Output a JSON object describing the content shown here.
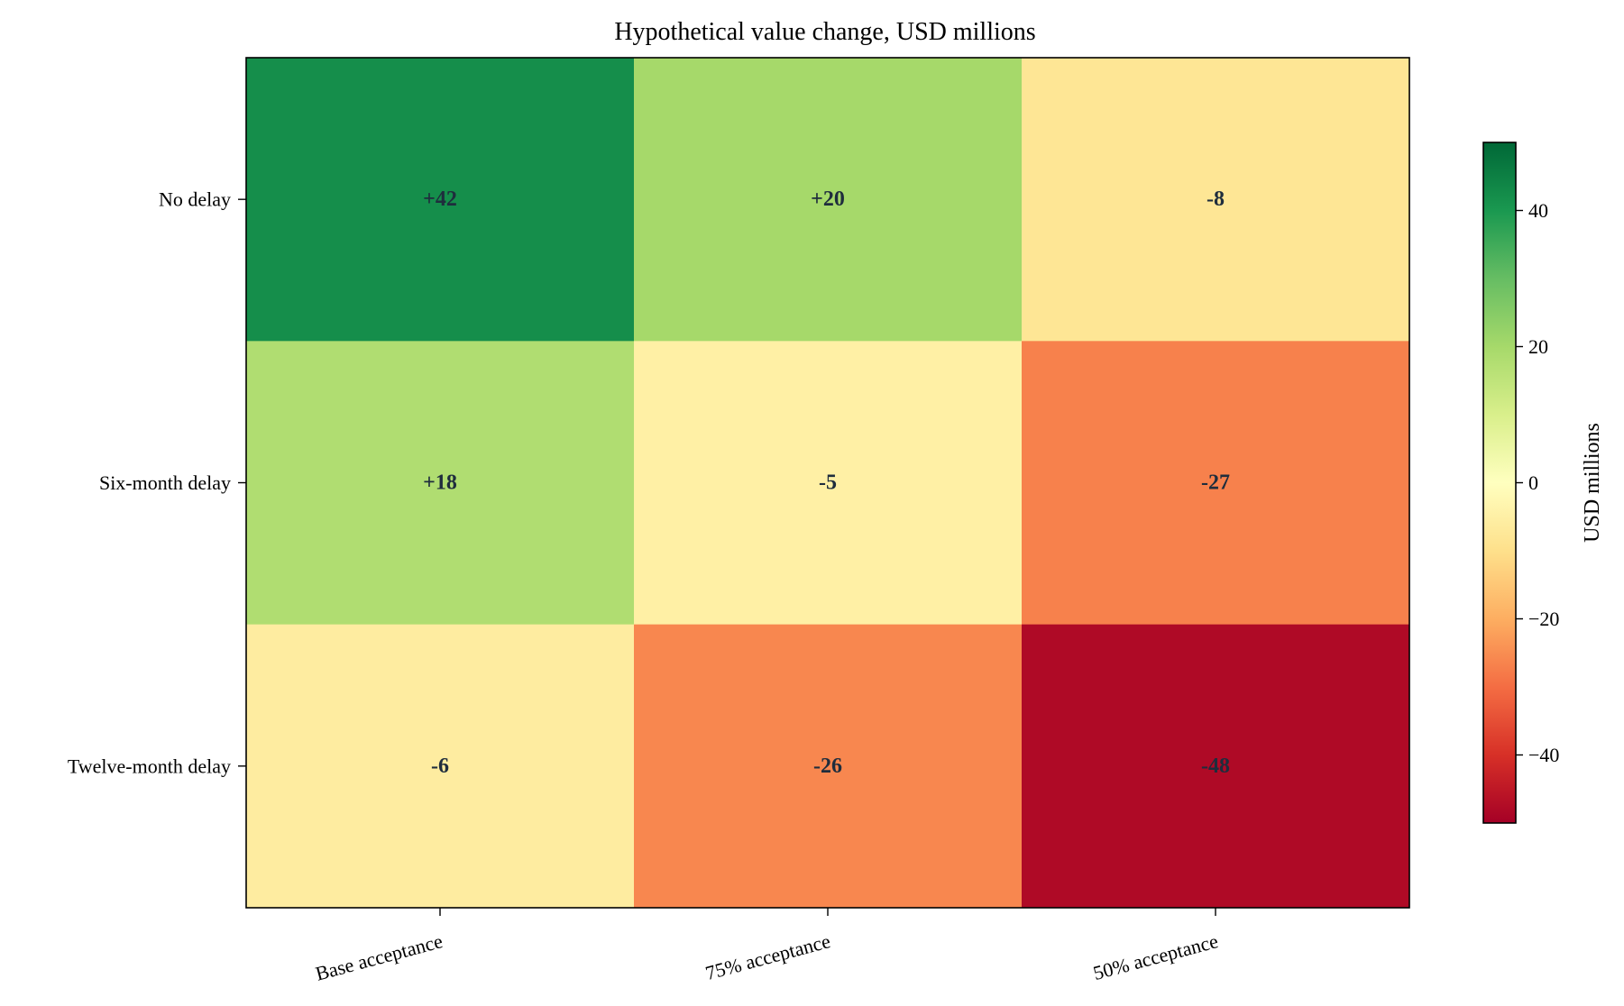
{
  "chart_data": {
    "type": "heatmap",
    "title": "Hypothetical value change, USD millions",
    "x_categories": [
      "Base acceptance",
      "75% acceptance",
      "50% acceptance"
    ],
    "y_categories": [
      "No delay",
      "Six-month delay",
      "Twelve-month delay"
    ],
    "values": [
      [
        42,
        20,
        -8
      ],
      [
        18,
        -5,
        -27
      ],
      [
        -6,
        -26,
        -48
      ]
    ],
    "cell_labels": [
      [
        "+42",
        "+20",
        "-8"
      ],
      [
        "+18",
        "-5",
        "-27"
      ],
      [
        "-6",
        "-26",
        "-48"
      ]
    ],
    "colormap": "RdYlGn",
    "color_range": [
      -50,
      50
    ],
    "colorbar": {
      "label": "USD millions",
      "ticks": [
        40,
        20,
        0,
        -20,
        -40
      ],
      "tick_labels": [
        "40",
        "20",
        "0",
        "−20",
        "−40"
      ]
    },
    "grid": false
  }
}
